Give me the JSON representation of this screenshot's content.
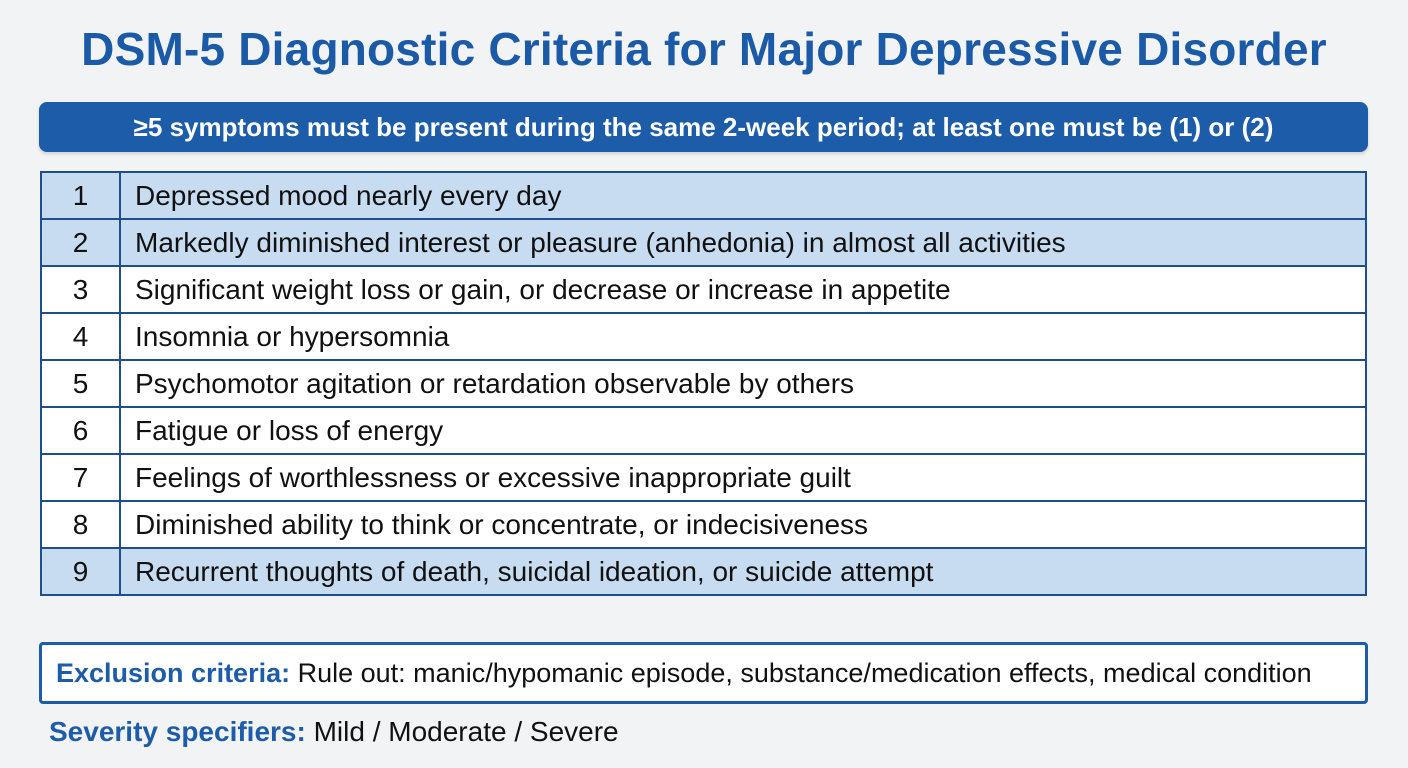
{
  "title": "DSM-5 Diagnostic Criteria for Major Depressive Disorder",
  "banner": "≥5 symptoms must be present during the same 2-week period; at least one must be (1) or (2)",
  "criteria": [
    {
      "num": "1",
      "text": "Depressed mood nearly every day"
    },
    {
      "num": "2",
      "text": "Markedly diminished interest or pleasure (anhedonia) in almost all activities"
    },
    {
      "num": "3",
      "text": "Significant weight loss or gain, or decrease or increase in appetite"
    },
    {
      "num": "4",
      "text": "Insomnia or hypersomnia"
    },
    {
      "num": "5",
      "text": "Psychomotor agitation or retardation observable by others"
    },
    {
      "num": "6",
      "text": "Fatigue or loss of energy"
    },
    {
      "num": "7",
      "text": "Feelings of worthlessness or excessive inappropriate guilt"
    },
    {
      "num": "8",
      "text": "Diminished ability to think or concentrate, or indecisiveness"
    },
    {
      "num": "9",
      "text": "Recurrent thoughts of death, suicidal ideation, or suicide attempt"
    }
  ],
  "exclusion": {
    "label": "Exclusion criteria:",
    "text": "Rule out: manic/hypomanic episode, substance/medication effects, medical condition"
  },
  "severity": {
    "label": "Severity specifiers:",
    "text": "Mild / Moderate / Severe"
  },
  "colors": {
    "accent": "#1d5ca8",
    "highlight_row": "#c7dcf1",
    "background": "#f2f3f5"
  }
}
